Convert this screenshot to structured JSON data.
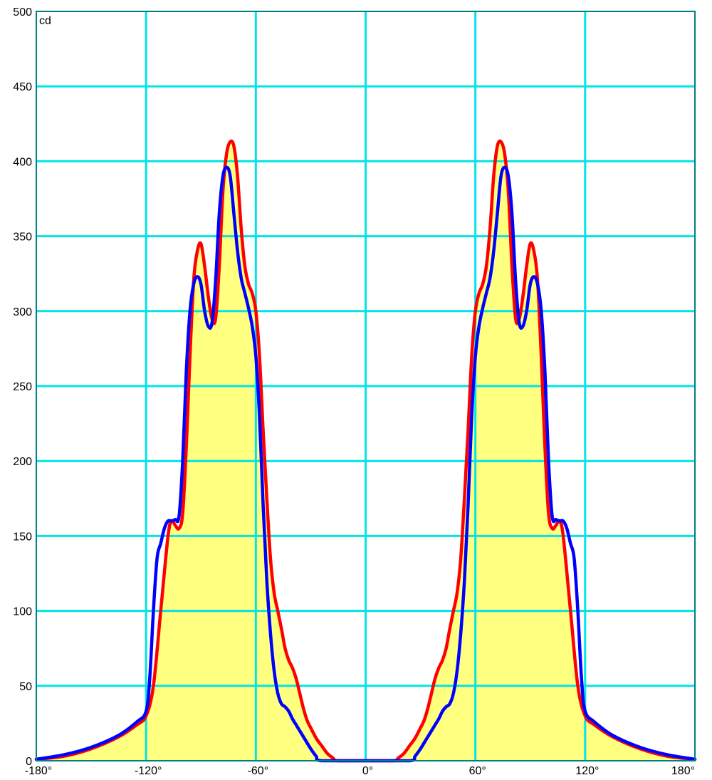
{
  "chart_data": {
    "type": "area",
    "unit_label": "cd",
    "xlim": [
      -180,
      180
    ],
    "ylim": [
      0,
      500
    ],
    "x_ticks": [
      -180,
      -120,
      -60,
      0,
      60,
      120,
      180
    ],
    "x_tick_labels": [
      "-180°",
      "-120°",
      "-60°",
      "0°",
      "60°",
      "120°",
      "180°"
    ],
    "y_ticks": [
      0,
      50,
      100,
      150,
      200,
      250,
      300,
      350,
      400,
      450,
      500
    ],
    "y_tick_labels": [
      "0",
      "50",
      "100",
      "150",
      "200",
      "250",
      "300",
      "350",
      "400",
      "450",
      "500"
    ],
    "grid": true,
    "colors": {
      "grid": "#00e5e5",
      "fill": "#ffff80",
      "frame": "#008080",
      "series_1": "#ff0000",
      "series_2": "#0000ff"
    },
    "series": [
      {
        "color": "#ff0000",
        "points": [
          [
            -180,
            1
          ],
          [
            -165,
            3
          ],
          [
            -150,
            8
          ],
          [
            -135,
            16
          ],
          [
            -125,
            24
          ],
          [
            -120,
            30
          ],
          [
            -116,
            50
          ],
          [
            -112,
            100
          ],
          [
            -108,
            150
          ],
          [
            -106,
            160
          ],
          [
            -104,
            157
          ],
          [
            -102,
            155
          ],
          [
            -100,
            165
          ],
          [
            -98,
            210
          ],
          [
            -96,
            270
          ],
          [
            -94,
            320
          ],
          [
            -92,
            340
          ],
          [
            -90,
            345
          ],
          [
            -88,
            330
          ],
          [
            -86,
            310
          ],
          [
            -84,
            295
          ],
          [
            -82,
            295
          ],
          [
            -80,
            330
          ],
          [
            -78,
            380
          ],
          [
            -76,
            405
          ],
          [
            -74,
            413
          ],
          [
            -72,
            410
          ],
          [
            -70,
            390
          ],
          [
            -68,
            355
          ],
          [
            -66,
            330
          ],
          [
            -64,
            318
          ],
          [
            -62,
            312
          ],
          [
            -60,
            300
          ],
          [
            -58,
            270
          ],
          [
            -56,
            220
          ],
          [
            -54,
            175
          ],
          [
            -52,
            135
          ],
          [
            -50,
            112
          ],
          [
            -48,
            100
          ],
          [
            -46,
            88
          ],
          [
            -44,
            75
          ],
          [
            -42,
            67
          ],
          [
            -40,
            62
          ],
          [
            -38,
            55
          ],
          [
            -36,
            45
          ],
          [
            -34,
            35
          ],
          [
            -32,
            27
          ],
          [
            -30,
            22
          ],
          [
            -27,
            15
          ],
          [
            -24,
            10
          ],
          [
            -21,
            5
          ],
          [
            -18,
            2
          ],
          [
            -15,
            0
          ],
          [
            0,
            0
          ],
          [
            15,
            0
          ],
          [
            18,
            2
          ],
          [
            21,
            5
          ],
          [
            24,
            10
          ],
          [
            27,
            15
          ],
          [
            30,
            22
          ],
          [
            32,
            27
          ],
          [
            34,
            35
          ],
          [
            36,
            45
          ],
          [
            38,
            55
          ],
          [
            40,
            62
          ],
          [
            42,
            67
          ],
          [
            44,
            75
          ],
          [
            46,
            88
          ],
          [
            48,
            100
          ],
          [
            50,
            112
          ],
          [
            52,
            135
          ],
          [
            54,
            175
          ],
          [
            56,
            220
          ],
          [
            58,
            270
          ],
          [
            60,
            300
          ],
          [
            62,
            312
          ],
          [
            64,
            318
          ],
          [
            66,
            330
          ],
          [
            68,
            355
          ],
          [
            70,
            390
          ],
          [
            72,
            410
          ],
          [
            74,
            413
          ],
          [
            76,
            405
          ],
          [
            78,
            380
          ],
          [
            80,
            330
          ],
          [
            82,
            295
          ],
          [
            84,
            295
          ],
          [
            86,
            310
          ],
          [
            88,
            330
          ],
          [
            90,
            345
          ],
          [
            92,
            340
          ],
          [
            94,
            320
          ],
          [
            96,
            270
          ],
          [
            98,
            210
          ],
          [
            100,
            165
          ],
          [
            102,
            155
          ],
          [
            104,
            157
          ],
          [
            106,
            160
          ],
          [
            108,
            150
          ],
          [
            112,
            100
          ],
          [
            116,
            50
          ],
          [
            120,
            30
          ],
          [
            125,
            24
          ],
          [
            135,
            16
          ],
          [
            150,
            8
          ],
          [
            165,
            3
          ],
          [
            180,
            1
          ]
        ]
      },
      {
        "color": "#0000ff",
        "points": [
          [
            -180,
            1
          ],
          [
            -165,
            4
          ],
          [
            -150,
            9
          ],
          [
            -135,
            17
          ],
          [
            -125,
            26
          ],
          [
            -120,
            33
          ],
          [
            -118,
            55
          ],
          [
            -116,
            100
          ],
          [
            -114,
            135
          ],
          [
            -112,
            145
          ],
          [
            -110,
            155
          ],
          [
            -108,
            160
          ],
          [
            -106,
            160
          ],
          [
            -104,
            161
          ],
          [
            -102,
            163
          ],
          [
            -100,
            200
          ],
          [
            -98,
            260
          ],
          [
            -96,
            300
          ],
          [
            -94,
            318
          ],
          [
            -92,
            323
          ],
          [
            -90,
            318
          ],
          [
            -88,
            300
          ],
          [
            -86,
            290
          ],
          [
            -84,
            292
          ],
          [
            -82,
            320
          ],
          [
            -80,
            365
          ],
          [
            -78,
            390
          ],
          [
            -76,
            396
          ],
          [
            -74,
            390
          ],
          [
            -72,
            365
          ],
          [
            -70,
            340
          ],
          [
            -68,
            322
          ],
          [
            -66,
            312
          ],
          [
            -64,
            302
          ],
          [
            -62,
            290
          ],
          [
            -60,
            270
          ],
          [
            -58,
            230
          ],
          [
            -56,
            170
          ],
          [
            -54,
            120
          ],
          [
            -52,
            85
          ],
          [
            -50,
            60
          ],
          [
            -48,
            45
          ],
          [
            -46,
            38
          ],
          [
            -44,
            36
          ],
          [
            -42,
            33
          ],
          [
            -40,
            28
          ],
          [
            -38,
            24
          ],
          [
            -36,
            20
          ],
          [
            -33,
            14
          ],
          [
            -30,
            8
          ],
          [
            -27,
            3
          ],
          [
            -24,
            0
          ],
          [
            0,
            0
          ],
          [
            24,
            0
          ],
          [
            27,
            3
          ],
          [
            30,
            8
          ],
          [
            33,
            14
          ],
          [
            36,
            20
          ],
          [
            38,
            24
          ],
          [
            40,
            28
          ],
          [
            42,
            33
          ],
          [
            44,
            36
          ],
          [
            46,
            38
          ],
          [
            48,
            45
          ],
          [
            50,
            60
          ],
          [
            52,
            85
          ],
          [
            54,
            120
          ],
          [
            56,
            170
          ],
          [
            58,
            230
          ],
          [
            60,
            270
          ],
          [
            62,
            290
          ],
          [
            64,
            302
          ],
          [
            66,
            312
          ],
          [
            68,
            322
          ],
          [
            70,
            340
          ],
          [
            72,
            365
          ],
          [
            74,
            390
          ],
          [
            76,
            396
          ],
          [
            78,
            390
          ],
          [
            80,
            365
          ],
          [
            82,
            320
          ],
          [
            84,
            292
          ],
          [
            86,
            290
          ],
          [
            88,
            300
          ],
          [
            90,
            318
          ],
          [
            92,
            323
          ],
          [
            94,
            318
          ],
          [
            96,
            300
          ],
          [
            98,
            260
          ],
          [
            100,
            200
          ],
          [
            102,
            163
          ],
          [
            104,
            161
          ],
          [
            106,
            160
          ],
          [
            108,
            160
          ],
          [
            110,
            155
          ],
          [
            112,
            145
          ],
          [
            114,
            135
          ],
          [
            116,
            100
          ],
          [
            118,
            55
          ],
          [
            120,
            33
          ],
          [
            125,
            26
          ],
          [
            135,
            17
          ],
          [
            150,
            9
          ],
          [
            165,
            4
          ],
          [
            180,
            1
          ]
        ]
      }
    ]
  }
}
